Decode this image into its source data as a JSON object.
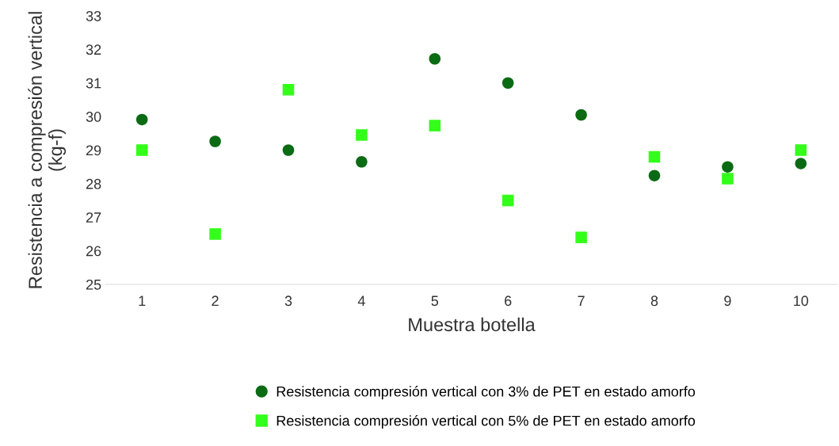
{
  "chart_data": {
    "type": "scatter",
    "xlabel": "Muestra botella",
    "ylabel": "Resistencia a compresión vertical\n(kg-f)",
    "categories": [
      "1",
      "2",
      "3",
      "4",
      "5",
      "6",
      "7",
      "8",
      "9",
      "10"
    ],
    "ylim": [
      25,
      33
    ],
    "yticks": [
      25,
      26,
      27,
      28,
      29,
      30,
      31,
      32,
      33
    ],
    "grid": false,
    "legend": "bottom",
    "series": [
      {
        "name": "Resistencia compresión vertical con 3% de PET en estado amorfo",
        "color": "#0b6b14",
        "marker": "circle",
        "values": [
          29.91,
          29.26,
          29.0,
          28.65,
          31.72,
          31.0,
          30.05,
          28.24,
          28.5,
          28.6
        ]
      },
      {
        "name": "Resistencia compresión vertical con 5% de PET en estado amorfo",
        "color": "#33ff1a",
        "marker": "square",
        "values": [
          29.0,
          26.5,
          30.8,
          29.45,
          29.73,
          27.5,
          26.4,
          28.8,
          28.15,
          29.0
        ]
      }
    ]
  }
}
